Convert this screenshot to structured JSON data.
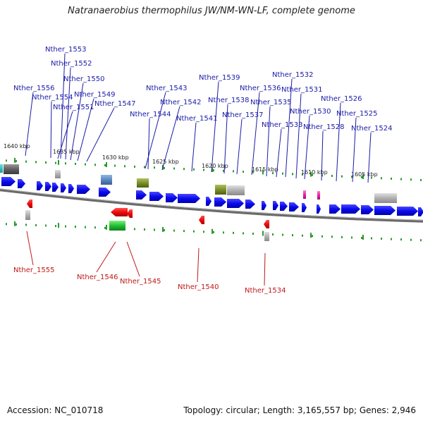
{
  "title": "Natranaerobius thermophilus JW/NM-WN-LF, complete genome",
  "footer": {
    "accession": "Accession: NC_010718",
    "summary": "Topology: circular; Length: 3,165,557 bp; Genes: 2,946"
  },
  "colors": {
    "forward_gene": "#0a0aee",
    "reverse_gene": "#ee0a0a",
    "backbone": "#808080",
    "tick": "#2a9a2a",
    "top_label": "#1a1aa8",
    "bottom_label": "#c01818"
  },
  "ticks": [
    {
      "label": "1640 kbp"
    },
    {
      "label": "1635 kbp"
    },
    {
      "label": "1630 kbp"
    },
    {
      "label": "1625 kbp"
    },
    {
      "label": "1620 kbp"
    },
    {
      "label": "1615 kbp"
    },
    {
      "label": "1610 kbp"
    },
    {
      "label": "1605 kbp"
    }
  ],
  "top_labels": [
    {
      "name": "Nther_1553"
    },
    {
      "name": "Nther_1552"
    },
    {
      "name": "Nther_1550"
    },
    {
      "name": "Nther_1556"
    },
    {
      "name": "Nther_1549"
    },
    {
      "name": "Nther_1554"
    },
    {
      "name": "Nther_1551"
    },
    {
      "name": "Nther_1547"
    },
    {
      "name": "Nther_1543"
    },
    {
      "name": "Nther_1544"
    },
    {
      "name": "Nther_1542"
    },
    {
      "name": "Nther_1539"
    },
    {
      "name": "Nther_1541"
    },
    {
      "name": "Nther_1538"
    },
    {
      "name": "Nther_1536"
    },
    {
      "name": "Nther_1537"
    },
    {
      "name": "Nther_1532"
    },
    {
      "name": "Nther_1535"
    },
    {
      "name": "Nther_1531"
    },
    {
      "name": "Nther_1533"
    },
    {
      "name": "Nther_1530"
    },
    {
      "name": "Nther_1526"
    },
    {
      "name": "Nther_1528"
    },
    {
      "name": "Nther_1525"
    },
    {
      "name": "Nther_1524"
    }
  ],
  "bottom_labels": [
    {
      "name": "Nther_1555"
    },
    {
      "name": "Nther_1546"
    },
    {
      "name": "Nther_1545"
    },
    {
      "name": "Nther_1540"
    },
    {
      "name": "Nther_1534"
    }
  ]
}
